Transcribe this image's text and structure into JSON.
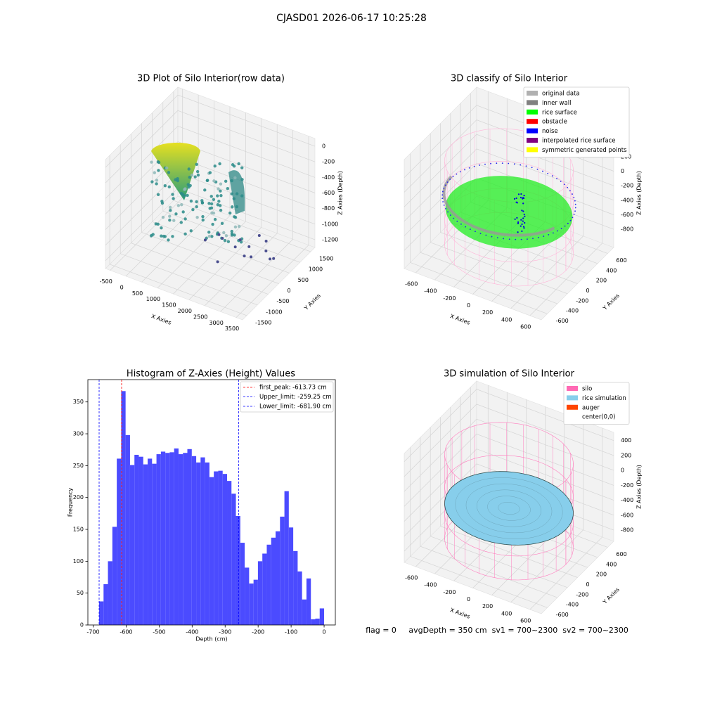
{
  "suptitle": "CJASD01 2026-06-17 10:25:28",
  "footer": "flag = 0     avgDepth = 350 cm  sv1 = 700~2300  sv2 = 700~2300",
  "chart_data": [
    {
      "type": "scatter3d",
      "title": "3D Plot of Silo Interior(row data)",
      "xlabel": "X Axies",
      "ylabel": "Y Axies",
      "zlabel": "Z Axies (Depth)",
      "xlim": [
        -650,
        3700
      ],
      "ylim": [
        -1700,
        1700
      ],
      "zlim": [
        -1300,
        100
      ],
      "xticks": [
        -500,
        0,
        500,
        1000,
        1500,
        2000,
        2500,
        3000,
        3500
      ],
      "yticks": [
        -1500,
        -1000,
        -500,
        0,
        500,
        1000,
        1500
      ],
      "zticks": [
        0,
        -200,
        -400,
        -600,
        -800,
        -1000,
        -1200
      ]
    },
    {
      "type": "scatter3d",
      "title": "3D classify of Silo Interior",
      "xlabel": "X Axies",
      "ylabel": "Y Axies",
      "zlabel": "Z Axies (Depth)",
      "xlim": [
        -720,
        720
      ],
      "ylim": [
        -720,
        720
      ],
      "zlim": [
        -1050,
        450
      ],
      "xticks": [
        -600,
        -400,
        -200,
        0,
        200,
        400,
        600
      ],
      "yticks": [
        -600,
        -400,
        -200,
        0,
        200,
        400,
        600
      ],
      "zticks": [
        200,
        0,
        -200,
        -400,
        -600,
        -800
      ],
      "legend": [
        {
          "name": "original data",
          "color": "#b0b0b0"
        },
        {
          "name": "inner wall",
          "color": "#808080"
        },
        {
          "name": "rice surface",
          "color": "#00ff00"
        },
        {
          "name": "obstacle",
          "color": "#ff0000"
        },
        {
          "name": "noise",
          "color": "#0000ff"
        },
        {
          "name": "interpolated rice surface",
          "color": "#800080"
        },
        {
          "name": "symmetric generated points",
          "color": "#ffff00"
        }
      ]
    },
    {
      "type": "histogram",
      "title": "Histogram of Z-Axies (Height) Values",
      "xlabel": "Depth (cm)",
      "ylabel": "Frequency",
      "color": "#4b4bff",
      "xlim": [
        -716,
        34
      ],
      "ylim": [
        0,
        385
      ],
      "xticks": [
        -700,
        -600,
        -500,
        -400,
        -300,
        -200,
        -100,
        0
      ],
      "yticks": [
        0,
        50,
        100,
        150,
        200,
        250,
        300,
        350
      ],
      "bins": [
        -681.9,
        -668.5,
        -655.2,
        -641.8,
        -628.4,
        -615.0,
        -601.7,
        -588.3,
        -574.9,
        -561.6,
        -548.2,
        -534.8,
        -521.5,
        -508.1,
        -494.7,
        -481.3,
        -468.0,
        -454.6,
        -441.2,
        -427.9,
        -414.5,
        -401.1,
        -387.7,
        -374.4,
        -361.0,
        -347.6,
        -334.3,
        -320.9,
        -307.5,
        -294.1,
        -280.8,
        -267.4,
        -254.0,
        -240.7,
        -227.3,
        -213.9,
        -200.6,
        -187.2,
        -173.8,
        -160.5,
        -147.1,
        -133.7,
        -120.3,
        -107.0,
        -93.6,
        -80.2,
        -66.9,
        -53.5,
        -40.1,
        -26.7,
        -13.4,
        0
      ],
      "counts": [
        37,
        64,
        100,
        154,
        261,
        367,
        298,
        251,
        267,
        264,
        252,
        261,
        253,
        268,
        272,
        270,
        271,
        277,
        268,
        270,
        276,
        265,
        255,
        263,
        255,
        232,
        241,
        242,
        237,
        226,
        206,
        171,
        129,
        90,
        65,
        71,
        100,
        112,
        126,
        137,
        147,
        170,
        210,
        153,
        116,
        84,
        40,
        73,
        9,
        10,
        26
      ],
      "vlines": [
        {
          "name": "first_peak: -613.73 cm",
          "value": -613.73,
          "color": "#ff0000"
        },
        {
          "name": "Upper_limit: -259.25 cm",
          "value": -259.25,
          "color": "#0000ff"
        },
        {
          "name": "Lower_limit: -681.90 cm",
          "value": -681.9,
          "color": "#0000ff"
        }
      ]
    },
    {
      "type": "surface3d",
      "title": "3D simulation of Silo Interior",
      "xlabel": "X Axies",
      "ylabel": "Y Axies",
      "zlabel": "Z Axies (Depth)",
      "xlim": [
        -720,
        720
      ],
      "ylim": [
        -720,
        720
      ],
      "zlim": [
        -950,
        510
      ],
      "xticks": [
        -600,
        -400,
        -200,
        0,
        200,
        400,
        600
      ],
      "yticks": [
        -600,
        -400,
        -200,
        0,
        200,
        400,
        600
      ],
      "zticks": [
        400,
        200,
        0,
        -200,
        -400,
        -600,
        -800
      ],
      "legend": [
        {
          "name": "silo",
          "color": "#ff69b4"
        },
        {
          "name": "rice simulation",
          "color": "#87ceeb"
        },
        {
          "name": "auger",
          "color": "#ff4500"
        },
        {
          "name": "center(0,0)",
          "color": "#ffffff"
        }
      ]
    }
  ]
}
